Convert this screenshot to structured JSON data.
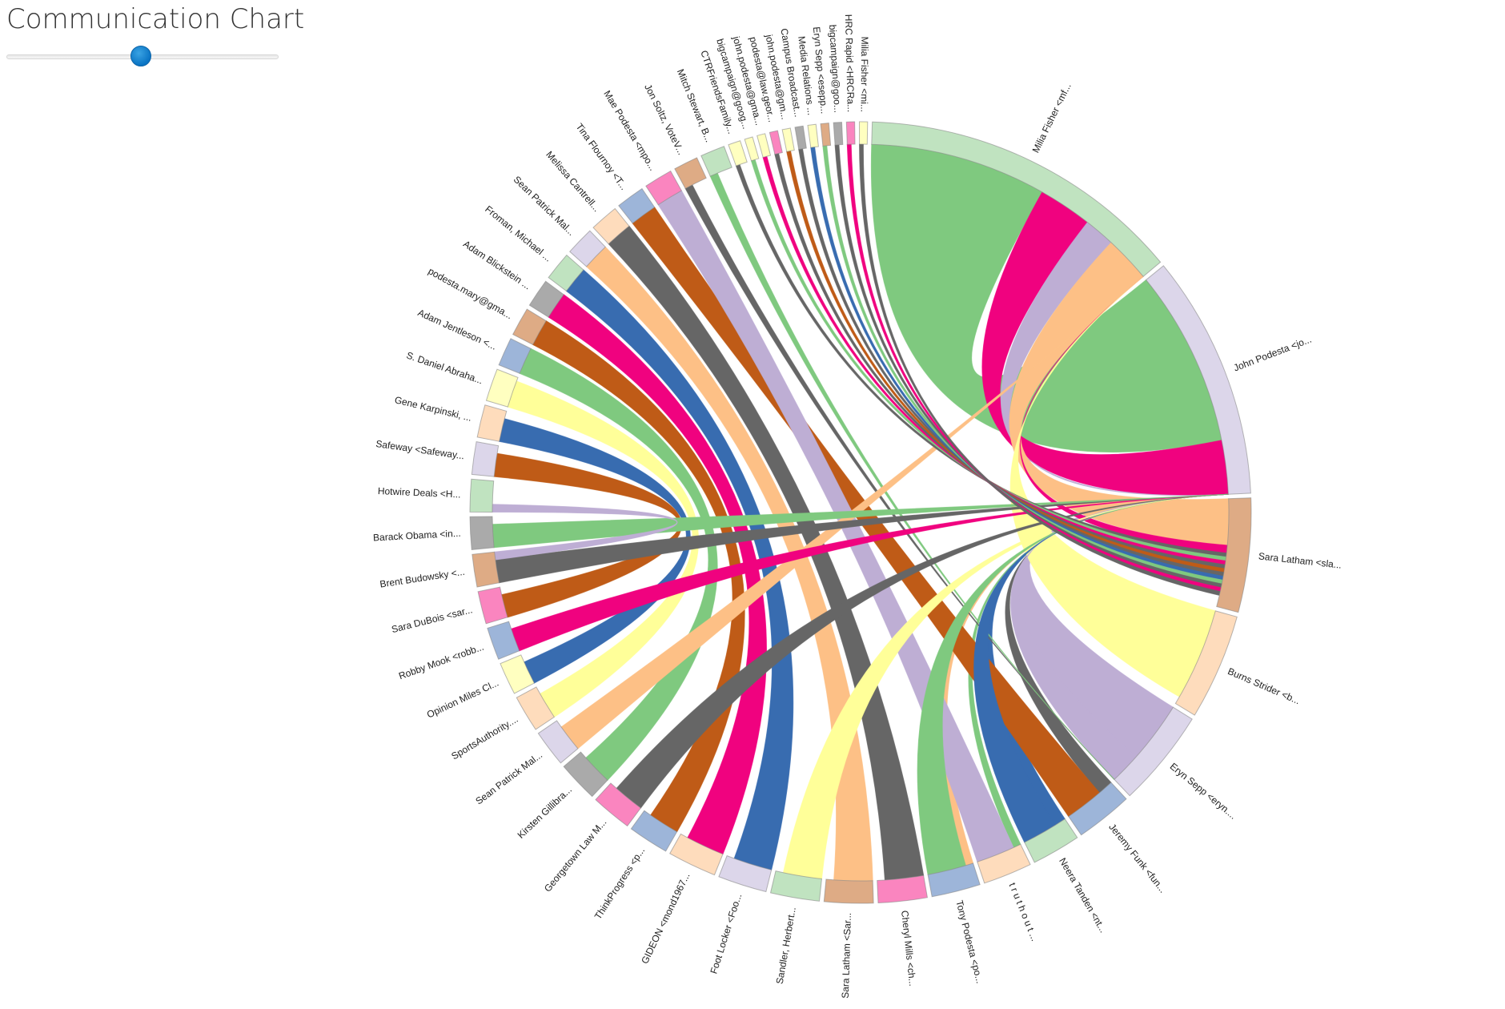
{
  "title": "Communication Chart",
  "slider": {
    "value": 0.495
  },
  "chart_data": {
    "type": "chord",
    "title": "Communication Chart",
    "groups": [
      {
        "label": "Milia Fisher <mf...",
        "value": 80,
        "color": "#c0e3c0"
      },
      {
        "label": "John Podesta <jo...",
        "value": 60,
        "color": "#dcd6ea"
      },
      {
        "label": "Sara Latham <sla...",
        "value": 28,
        "color": "#deab85"
      },
      {
        "label": "Burns Strider <b...",
        "value": 26,
        "color": "#fedcbc"
      },
      {
        "label": "Eryn Sepp <eryn....",
        "value": 24,
        "color": "#dcd6ea"
      },
      {
        "label": "Jeremy Funk <fun...",
        "value": 14,
        "color": "#9db5d9"
      },
      {
        "label": "Neera Tanden <nt...",
        "value": 12,
        "color": "#c0e3c0"
      },
      {
        "label": "t r u t h o u t ...",
        "value": 12,
        "color": "#fedcbc"
      },
      {
        "label": "Tony Podesta <po...",
        "value": 12,
        "color": "#9db5d9"
      },
      {
        "label": "Cheryl Mills <ch...",
        "value": 12,
        "color": "#fa85bf"
      },
      {
        "label": "Sara Latham <Sar...",
        "value": 12,
        "color": "#deab85"
      },
      {
        "label": "Sandler, Herbert...",
        "value": 12,
        "color": "#c0e3c0"
      },
      {
        "label": "Foot Locker <Foo...",
        "value": 12,
        "color": "#dcd6ea"
      },
      {
        "label": "GIDEON <mond1967...",
        "value": 12,
        "color": "#fedcbc"
      },
      {
        "label": "ThinkProgress <p...",
        "value": 10,
        "color": "#9db5d9"
      },
      {
        "label": "Georgetown Law M...",
        "value": 10,
        "color": "#fa85bf"
      },
      {
        "label": "Kirsten Gillibra...",
        "value": 10,
        "color": "#aaaaaa"
      },
      {
        "label": "Sean Patrick Mal...",
        "value": 9,
        "color": "#dcd6ea"
      },
      {
        "label": "SportsAuthority....",
        "value": 9,
        "color": "#fedcbc"
      },
      {
        "label": "Opinion Miles Cl...",
        "value": 8,
        "color": "#ffffc0"
      },
      {
        "label": "Robby Mook <robb...",
        "value": 8,
        "color": "#9db5d9"
      },
      {
        "label": "Sara DuBois <sar...",
        "value": 8,
        "color": "#fa85bf"
      },
      {
        "label": "Brent Budowsky <...",
        "value": 8,
        "color": "#deab85"
      },
      {
        "label": "Barack Obama <in...",
        "value": 8,
        "color": "#aaaaaa"
      },
      {
        "label": "Hotwire Deals <H...",
        "value": 8,
        "color": "#c0e3c0"
      },
      {
        "label": "Safeway <Safeway...",
        "value": 8,
        "color": "#dcd6ea"
      },
      {
        "label": "Gene Karpinski, ...",
        "value": 8,
        "color": "#fedcbc"
      },
      {
        "label": "S. Daniel Abraha...",
        "value": 8,
        "color": "#ffffc0"
      },
      {
        "label": "Adam Jentleson <...",
        "value": 7,
        "color": "#9db5d9"
      },
      {
        "label": "podesta.mary@gma...",
        "value": 7,
        "color": "#deab85"
      },
      {
        "label": "Adam Blickstein ...",
        "value": 7,
        "color": "#aaaaaa"
      },
      {
        "label": "Froman, Michael ...",
        "value": 7,
        "color": "#c0e3c0"
      },
      {
        "label": "Sean Patrick Mal...",
        "value": 7,
        "color": "#dcd6ea"
      },
      {
        "label": "Melissa Cantrell...",
        "value": 7,
        "color": "#fedcbc"
      },
      {
        "label": "Tina Flournoy <T...",
        "value": 7,
        "color": "#9db5d9"
      },
      {
        "label": "Mae Podesta <mpo...",
        "value": 7,
        "color": "#fa85bf"
      },
      {
        "label": "Jon Soltz, VoteV...",
        "value": 6,
        "color": "#deab85"
      },
      {
        "label": "Mitch Stewart, B...",
        "value": 6,
        "color": "#c0e3c0"
      },
      {
        "label": "CTRFriendsFamily...",
        "value": 3,
        "color": "#ffffc0"
      },
      {
        "label": "bigcampaign@goog...",
        "value": 2,
        "color": "#ffffc0"
      },
      {
        "label": "john.podesta@gma...",
        "value": 2,
        "color": "#ffffc0"
      },
      {
        "label": "podesta@law.geor...",
        "value": 2,
        "color": "#fa85bf"
      },
      {
        "label": "john.podesta@gm...",
        "value": 2,
        "color": "#ffffc0"
      },
      {
        "label": "Campus Broadcast...",
        "value": 2,
        "color": "#aaaaaa"
      },
      {
        "label": "Media Relations ...",
        "value": 2,
        "color": "#ffffc0"
      },
      {
        "label": "Eryn Sepp <esepp...",
        "value": 2,
        "color": "#deab85"
      },
      {
        "label": "bigcampaign@goo...",
        "value": 2,
        "color": "#aaaaaa"
      },
      {
        "label": "HRC Rapid <HRCRa...",
        "value": 2,
        "color": "#fa85bf"
      },
      {
        "label": "Milia Fisher <mi...",
        "value": 2,
        "color": "#ffffc0"
      }
    ],
    "links": [
      {
        "source": 0,
        "target": 1,
        "value": 46,
        "color": "#7fc97f"
      },
      {
        "source": 0,
        "target": 1,
        "value": 14,
        "color": "#f0027f",
        "note_target_pos": 2
      },
      {
        "source": 1,
        "target": 0,
        "value": 8,
        "color": "#beaed4"
      },
      {
        "source": 1,
        "target": 4,
        "value": 16,
        "color": "#beaed4"
      },
      {
        "source": 1,
        "target": 5,
        "value": 4,
        "color": "#666666"
      },
      {
        "source": 1,
        "target": 6,
        "value": 3,
        "color": "#386cb0"
      },
      {
        "source": 1,
        "target": 7,
        "value": 2,
        "color": "#7fc97f"
      },
      {
        "source": 1,
        "target": 8,
        "value": 2,
        "color": "#fdc086"
      },
      {
        "source": 2,
        "target": 0,
        "value": 12,
        "color": "#fdc086"
      },
      {
        "source": 2,
        "target": 0,
        "value": 2,
        "color": "#f0027f"
      },
      {
        "source": 3,
        "target": 0,
        "value": 24,
        "color": "#ffff99"
      },
      {
        "source": 4,
        "target": 1,
        "value": 18,
        "color": "#beaed4"
      },
      {
        "source": 4,
        "target": 36,
        "value": 2,
        "color": "#666666"
      },
      {
        "source": 4,
        "target": 37,
        "value": 2,
        "color": "#7fc97f"
      },
      {
        "source": 5,
        "target": 34,
        "value": 12,
        "color": "#bf5b17"
      },
      {
        "source": 6,
        "target": 1,
        "value": 10,
        "color": "#386cb0"
      },
      {
        "source": 7,
        "target": 35,
        "value": 10,
        "color": "#beaed4"
      },
      {
        "source": 8,
        "target": 1,
        "value": 10,
        "color": "#7fc97f"
      },
      {
        "source": 9,
        "target": 33,
        "value": 10,
        "color": "#666666"
      },
      {
        "source": 10,
        "target": 32,
        "value": 10,
        "color": "#fdc086"
      },
      {
        "source": 11,
        "target": 1,
        "value": 10,
        "color": "#ffff99"
      },
      {
        "source": 12,
        "target": 31,
        "value": 10,
        "color": "#386cb0"
      },
      {
        "source": 13,
        "target": 30,
        "value": 10,
        "color": "#f0027f"
      },
      {
        "source": 14,
        "target": 29,
        "value": 8,
        "color": "#bf5b17"
      },
      {
        "source": 15,
        "target": 1,
        "value": 8,
        "color": "#666666"
      },
      {
        "source": 16,
        "target": 28,
        "value": 8,
        "color": "#7fc97f"
      },
      {
        "source": 17,
        "target": 0,
        "value": 7,
        "color": "#fdc086"
      },
      {
        "source": 18,
        "target": 27,
        "value": 7,
        "color": "#ffff99"
      },
      {
        "source": 19,
        "target": 26,
        "value": 6,
        "color": "#386cb0"
      },
      {
        "source": 20,
        "target": 1,
        "value": 6,
        "color": "#f0027f"
      },
      {
        "source": 21,
        "target": 25,
        "value": 6,
        "color": "#bf5b17"
      },
      {
        "source": 22,
        "target": 1,
        "value": 6,
        "color": "#666666"
      },
      {
        "source": 23,
        "target": 1,
        "value": 6,
        "color": "#7fc97f"
      },
      {
        "source": 24,
        "target": 22,
        "value": 2,
        "color": "#beaed4"
      },
      {
        "source": 38,
        "target": 2,
        "value": 1,
        "color": "#666666"
      },
      {
        "source": 39,
        "target": 2,
        "value": 1,
        "color": "#7fc97f"
      },
      {
        "source": 40,
        "target": 2,
        "value": 1,
        "color": "#f0027f"
      },
      {
        "source": 41,
        "target": 2,
        "value": 1,
        "color": "#666666"
      },
      {
        "source": 42,
        "target": 2,
        "value": 1,
        "color": "#bf5b17"
      },
      {
        "source": 43,
        "target": 2,
        "value": 1,
        "color": "#666666"
      },
      {
        "source": 44,
        "target": 2,
        "value": 1,
        "color": "#386cb0"
      },
      {
        "source": 45,
        "target": 2,
        "value": 1,
        "color": "#7fc97f"
      },
      {
        "source": 46,
        "target": 2,
        "value": 1,
        "color": "#666666"
      },
      {
        "source": 47,
        "target": 2,
        "value": 1,
        "color": "#f0027f"
      },
      {
        "source": 48,
        "target": 2,
        "value": 1,
        "color": "#666666"
      }
    ]
  }
}
